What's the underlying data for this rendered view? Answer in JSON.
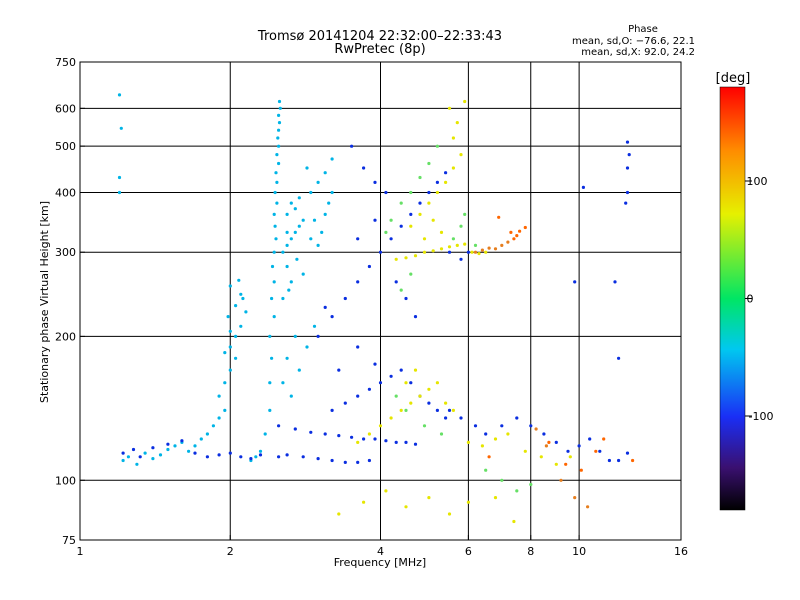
{
  "chart_data": {
    "type": "scatter",
    "title": "Tromsø 20141204 22:32:00–22:33:43",
    "subtitle": "RwPretec (8p)",
    "xlabel": "Frequency [MHz]",
    "ylabel": "Stationary phase Virtual Height [km]",
    "x_scale": "log",
    "y_scale": "log",
    "xlim": [
      1,
      16
    ],
    "ylim": [
      75,
      750
    ],
    "x_ticks": [
      1,
      2,
      4,
      6,
      8,
      10,
      16
    ],
    "y_ticks": [
      75,
      100,
      200,
      300,
      400,
      500,
      600,
      750
    ],
    "x_grid": [
      2,
      4,
      6,
      8,
      10
    ],
    "y_grid": [
      100,
      200,
      300,
      400,
      500,
      600
    ],
    "grid": true,
    "stats": {
      "heading": "Phase",
      "line_o": "mean, sd,O: −76.6, 22.1",
      "line_x": "mean, sd,X:  92.0, 24.2"
    },
    "colorbar": {
      "label": "[deg]",
      "range": [
        -180,
        180
      ],
      "ticks": [
        100,
        0,
        -100
      ],
      "scale": "rainbow (black at −180, red at +180)"
    },
    "series": [
      {
        "color": "#00b4e6",
        "points": [
          [
            1.22,
            110
          ],
          [
            1.25,
            112
          ],
          [
            1.3,
            108
          ],
          [
            1.35,
            114
          ],
          [
            1.4,
            111
          ],
          [
            1.45,
            113
          ],
          [
            1.5,
            116
          ],
          [
            1.55,
            118
          ],
          [
            1.6,
            120
          ],
          [
            1.65,
            115
          ],
          [
            1.7,
            118
          ],
          [
            1.75,
            122
          ],
          [
            1.8,
            125
          ],
          [
            1.85,
            130
          ],
          [
            1.9,
            135
          ],
          [
            1.95,
            140
          ],
          [
            1.9,
            150
          ],
          [
            1.95,
            160
          ],
          [
            2.0,
            170
          ],
          [
            2.05,
            180
          ],
          [
            2.0,
            190
          ],
          [
            2.05,
            200
          ],
          [
            2.1,
            210
          ],
          [
            1.98,
            220
          ],
          [
            2.05,
            232
          ],
          [
            2.1,
            245
          ],
          [
            2.0,
            255
          ],
          [
            2.08,
            262
          ],
          [
            2.12,
            240
          ],
          [
            2.15,
            225
          ],
          [
            2.0,
            205
          ],
          [
            1.95,
            185
          ],
          [
            2.2,
            110
          ],
          [
            2.25,
            112
          ],
          [
            2.3,
            115
          ],
          [
            2.35,
            125
          ],
          [
            2.4,
            140
          ],
          [
            2.4,
            160
          ],
          [
            2.42,
            180
          ],
          [
            2.4,
            200
          ],
          [
            2.45,
            220
          ],
          [
            2.42,
            240
          ],
          [
            2.45,
            260
          ],
          [
            2.43,
            280
          ],
          [
            2.45,
            300
          ],
          [
            2.47,
            320
          ],
          [
            2.46,
            340
          ],
          [
            2.45,
            360
          ],
          [
            2.48,
            380
          ],
          [
            2.46,
            400
          ],
          [
            2.48,
            420
          ],
          [
            2.47,
            440
          ],
          [
            2.5,
            460
          ],
          [
            2.48,
            480
          ],
          [
            2.5,
            500
          ],
          [
            2.49,
            520
          ],
          [
            2.5,
            540
          ],
          [
            2.51,
            560
          ],
          [
            2.5,
            580
          ],
          [
            2.52,
            600
          ],
          [
            2.51,
            620
          ],
          [
            2.55,
            300
          ],
          [
            2.6,
            310
          ],
          [
            2.65,
            320
          ],
          [
            2.7,
            330
          ],
          [
            2.75,
            340
          ],
          [
            2.8,
            350
          ],
          [
            2.6,
            360
          ],
          [
            2.7,
            370
          ],
          [
            2.65,
            380
          ],
          [
            2.75,
            390
          ],
          [
            2.6,
            330
          ],
          [
            2.72,
            290
          ],
          [
            2.8,
            270
          ],
          [
            2.62,
            250
          ],
          [
            2.9,
            320
          ],
          [
            2.95,
            350
          ],
          [
            3.0,
            310
          ],
          [
            3.05,
            330
          ],
          [
            3.1,
            360
          ],
          [
            3.15,
            380
          ],
          [
            3.2,
            400
          ],
          [
            3.0,
            420
          ],
          [
            3.1,
            440
          ],
          [
            2.9,
            400
          ],
          [
            2.85,
            450
          ],
          [
            3.2,
            470
          ],
          [
            1.2,
            400
          ],
          [
            1.2,
            430
          ],
          [
            1.2,
            640
          ],
          [
            1.21,
            545
          ],
          [
            2.6,
            280
          ],
          [
            2.55,
            240
          ],
          [
            2.65,
            260
          ],
          [
            2.7,
            200
          ],
          [
            2.6,
            180
          ],
          [
            2.55,
            160
          ],
          [
            2.65,
            150
          ],
          [
            2.75,
            170
          ],
          [
            2.85,
            190
          ],
          [
            2.95,
            210
          ]
        ]
      },
      {
        "color": "#0a2ee0",
        "points": [
          [
            1.22,
            114
          ],
          [
            1.28,
            116
          ],
          [
            1.32,
            112
          ],
          [
            1.4,
            117
          ],
          [
            1.5,
            119
          ],
          [
            1.6,
            121
          ],
          [
            1.7,
            114
          ],
          [
            1.8,
            112
          ],
          [
            1.9,
            113
          ],
          [
            2.0,
            114
          ],
          [
            2.1,
            112
          ],
          [
            2.2,
            111
          ],
          [
            2.3,
            113
          ],
          [
            2.5,
            112
          ],
          [
            2.6,
            113
          ],
          [
            2.8,
            112
          ],
          [
            3.0,
            111
          ],
          [
            3.2,
            110
          ],
          [
            3.4,
            109
          ],
          [
            3.6,
            109
          ],
          [
            3.8,
            110
          ],
          [
            2.5,
            130
          ],
          [
            2.7,
            128
          ],
          [
            2.9,
            126
          ],
          [
            3.1,
            125
          ],
          [
            3.3,
            124
          ],
          [
            3.5,
            123
          ],
          [
            3.7,
            122
          ],
          [
            3.9,
            122
          ],
          [
            4.1,
            121
          ],
          [
            4.3,
            120
          ],
          [
            4.5,
            120
          ],
          [
            4.7,
            119
          ],
          [
            3.2,
            140
          ],
          [
            3.4,
            145
          ],
          [
            3.6,
            150
          ],
          [
            3.8,
            155
          ],
          [
            4.0,
            160
          ],
          [
            4.2,
            165
          ],
          [
            4.4,
            170
          ],
          [
            4.6,
            160
          ],
          [
            4.8,
            150
          ],
          [
            5.0,
            145
          ],
          [
            5.2,
            140
          ],
          [
            5.4,
            135
          ],
          [
            3.0,
            200
          ],
          [
            3.2,
            220
          ],
          [
            3.4,
            240
          ],
          [
            3.6,
            260
          ],
          [
            3.8,
            280
          ],
          [
            4.0,
            300
          ],
          [
            4.2,
            320
          ],
          [
            4.4,
            340
          ],
          [
            4.6,
            360
          ],
          [
            4.8,
            380
          ],
          [
            5.0,
            400
          ],
          [
            5.2,
            420
          ],
          [
            5.4,
            440
          ],
          [
            3.5,
            500
          ],
          [
            3.7,
            450
          ],
          [
            3.9,
            420
          ],
          [
            4.1,
            400
          ],
          [
            3.9,
            350
          ],
          [
            3.6,
            320
          ],
          [
            4.3,
            260
          ],
          [
            4.5,
            240
          ],
          [
            4.7,
            220
          ],
          [
            5.5,
            300
          ],
          [
            5.8,
            290
          ],
          [
            6.0,
            300
          ],
          [
            5.5,
            140
          ],
          [
            5.8,
            135
          ],
          [
            6.2,
            130
          ],
          [
            6.5,
            125
          ],
          [
            7.0,
            130
          ],
          [
            7.5,
            135
          ],
          [
            8.0,
            130
          ],
          [
            8.5,
            125
          ],
          [
            9.0,
            120
          ],
          [
            9.5,
            115
          ],
          [
            10.0,
            118
          ],
          [
            10.5,
            122
          ],
          [
            11.0,
            115
          ],
          [
            11.5,
            110
          ],
          [
            12.0,
            110
          ],
          [
            12.5,
            114
          ],
          [
            12.5,
            400
          ],
          [
            12.5,
            450
          ],
          [
            12.6,
            480
          ],
          [
            12.5,
            510
          ],
          [
            12.4,
            380
          ],
          [
            12.0,
            180
          ],
          [
            11.8,
            260
          ],
          [
            10.2,
            410
          ],
          [
            9.8,
            260
          ],
          [
            3.1,
            230
          ],
          [
            3.3,
            170
          ],
          [
            3.6,
            190
          ],
          [
            3.9,
            175
          ]
        ]
      },
      {
        "color": "#e6e600",
        "points": [
          [
            4.3,
            290
          ],
          [
            4.5,
            292
          ],
          [
            4.7,
            295
          ],
          [
            4.9,
            300
          ],
          [
            5.1,
            302
          ],
          [
            5.3,
            305
          ],
          [
            5.5,
            308
          ],
          [
            5.7,
            310
          ],
          [
            5.9,
            312
          ],
          [
            6.1,
            300
          ],
          [
            6.3,
            298
          ],
          [
            6.5,
            300
          ],
          [
            4.6,
            340
          ],
          [
            4.8,
            360
          ],
          [
            5.0,
            380
          ],
          [
            5.2,
            400
          ],
          [
            5.4,
            420
          ],
          [
            5.6,
            450
          ],
          [
            5.8,
            480
          ],
          [
            5.6,
            520
          ],
          [
            5.7,
            560
          ],
          [
            5.5,
            600
          ],
          [
            5.9,
            620
          ],
          [
            5.3,
            330
          ],
          [
            5.1,
            350
          ],
          [
            4.9,
            320
          ],
          [
            3.6,
            120
          ],
          [
            3.8,
            125
          ],
          [
            4.0,
            130
          ],
          [
            4.2,
            135
          ],
          [
            4.4,
            140
          ],
          [
            4.6,
            145
          ],
          [
            4.8,
            150
          ],
          [
            5.0,
            155
          ],
          [
            5.2,
            160
          ],
          [
            4.5,
            160
          ],
          [
            4.7,
            170
          ],
          [
            5.4,
            145
          ],
          [
            5.6,
            140
          ],
          [
            6.0,
            120
          ],
          [
            6.4,
            118
          ],
          [
            6.8,
            122
          ],
          [
            7.2,
            125
          ],
          [
            7.8,
            115
          ],
          [
            8.4,
            112
          ],
          [
            9.0,
            108
          ],
          [
            9.6,
            112
          ],
          [
            3.3,
            85
          ],
          [
            3.7,
            90
          ],
          [
            4.1,
            95
          ],
          [
            4.5,
            88
          ],
          [
            5.0,
            92
          ],
          [
            5.5,
            85
          ],
          [
            6.0,
            90
          ],
          [
            6.8,
            92
          ],
          [
            7.4,
            82
          ]
        ]
      },
      {
        "color": "#66e066",
        "points": [
          [
            4.4,
            380
          ],
          [
            4.6,
            400
          ],
          [
            4.8,
            430
          ],
          [
            5.0,
            460
          ],
          [
            4.2,
            350
          ],
          [
            4.1,
            330
          ],
          [
            5.2,
            500
          ],
          [
            5.6,
            320
          ],
          [
            5.8,
            340
          ],
          [
            5.9,
            360
          ],
          [
            6.2,
            310
          ],
          [
            4.6,
            270
          ],
          [
            4.4,
            250
          ],
          [
            4.3,
            150
          ],
          [
            4.5,
            140
          ],
          [
            4.9,
            130
          ],
          [
            5.3,
            125
          ],
          [
            6.5,
            105
          ],
          [
            7.0,
            100
          ],
          [
            7.5,
            95
          ],
          [
            8.0,
            98
          ]
        ]
      },
      {
        "color": "#ff6600",
        "points": [
          [
            7.3,
            330
          ],
          [
            7.5,
            325
          ],
          [
            7.6,
            332
          ],
          [
            7.8,
            338
          ],
          [
            7.4,
            320
          ],
          [
            6.9,
            355
          ],
          [
            10.1,
            105
          ],
          [
            10.8,
            115
          ],
          [
            11.2,
            122
          ],
          [
            9.4,
            108
          ],
          [
            12.8,
            110
          ],
          [
            6.6,
            112
          ],
          [
            8.7,
            120
          ]
        ]
      },
      {
        "color": "#e67e1e",
        "points": [
          [
            6.2,
            300
          ],
          [
            6.4,
            303
          ],
          [
            6.6,
            306
          ],
          [
            6.8,
            305
          ],
          [
            7.0,
            310
          ],
          [
            7.2,
            315
          ],
          [
            8.2,
            128
          ],
          [
            8.6,
            118
          ],
          [
            9.2,
            100
          ],
          [
            9.8,
            92
          ],
          [
            10.4,
            88
          ]
        ]
      }
    ]
  }
}
